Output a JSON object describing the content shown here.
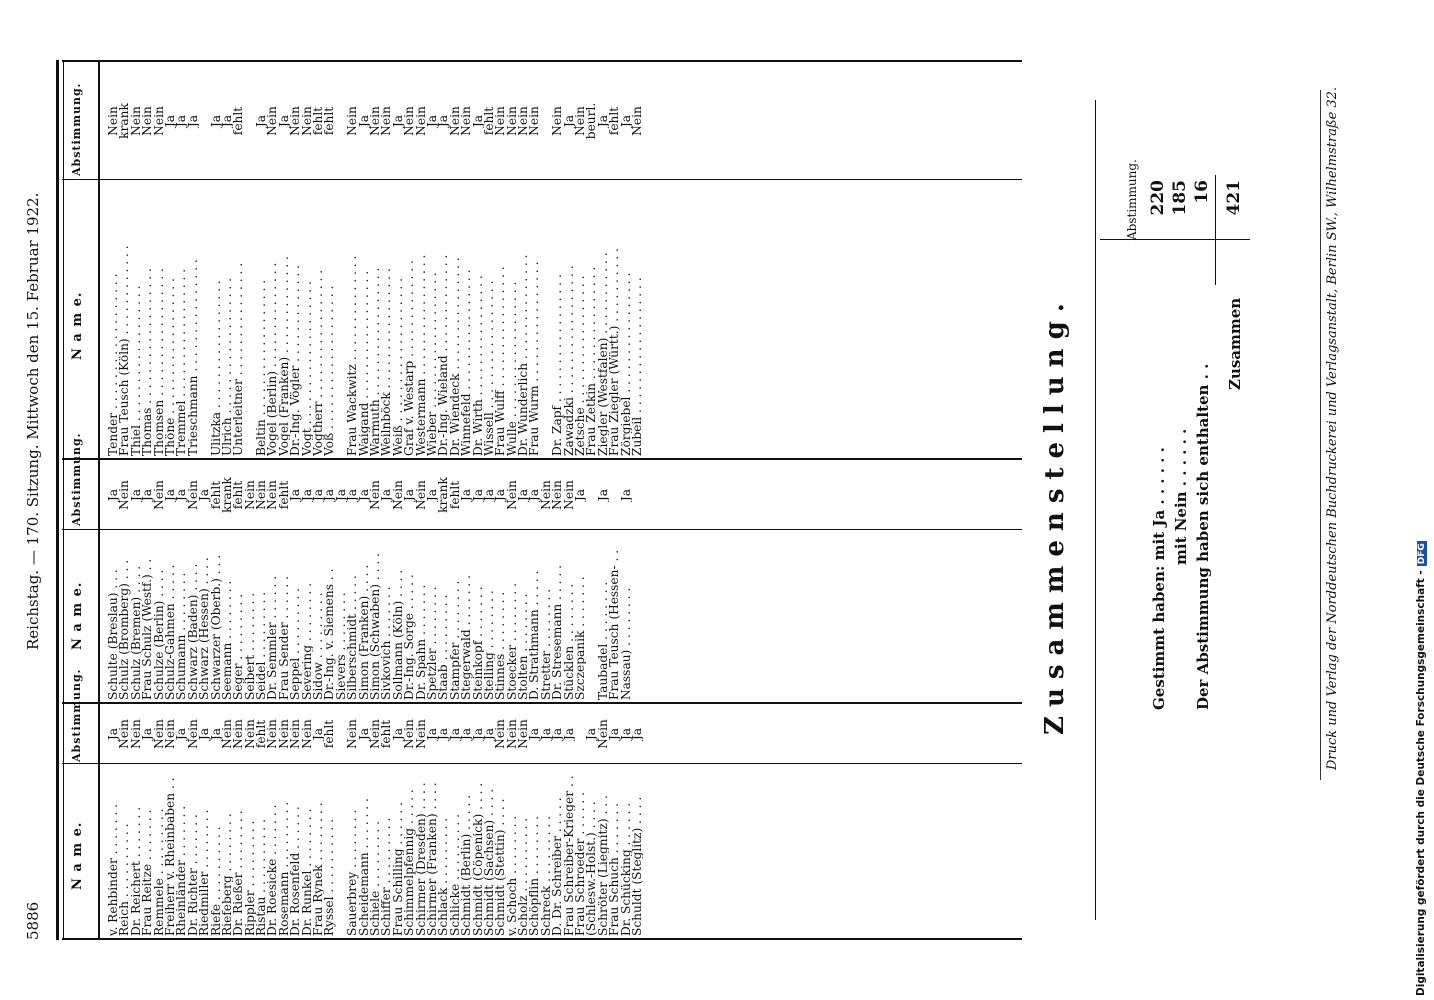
{
  "header": {
    "page_number": "5886",
    "title": "Reichstag. — 170. Sitzung. Mittwoch den 15. Februar 1922."
  },
  "columns": {
    "name_header": "N a m e.",
    "vote_header": "Abstimmung."
  },
  "col1": [
    [
      "v. Rehbinder",
      "Ja"
    ],
    [
      "Reich",
      "Nein"
    ],
    [
      "Dr. Reichert",
      "Nein"
    ],
    [
      "Frau Reitze",
      "Ja"
    ],
    [
      "Remmele",
      "Nein"
    ],
    [
      "Freiherr v. Rheinbaben",
      "Nein"
    ],
    [
      "Rheinländer",
      "Ja"
    ],
    [
      "Dr. Richter",
      "Nein"
    ],
    [
      "Riedmiller",
      "Ja"
    ],
    [
      "Riefe",
      "Ja"
    ],
    [
      "Riefeberg",
      "Nein"
    ],
    [
      "Dr. Rießer",
      "Nein"
    ],
    [
      "Rippler",
      "Nein"
    ],
    [
      "Ristau",
      "fehlt"
    ],
    [
      "Dr. Roesicke",
      "Nein"
    ],
    [
      "Rosemann",
      "Nein"
    ],
    [
      "Dr. Rosenfeld",
      "Nein"
    ],
    [
      "Dr. Runkel",
      "Nein"
    ],
    [
      "Frau Rynek",
      "Ja"
    ],
    [
      "Ryssel",
      "fehlt"
    ],
    [
      "",
      ""
    ],
    [
      "Sauerbrey",
      "Nein"
    ],
    [
      "Scheidemann",
      "Ja"
    ],
    [
      "Schiele",
      "Nein"
    ],
    [
      "Schiffer",
      "fehlt"
    ],
    [
      "Frau Schilling",
      "Ja"
    ],
    [
      "Schimmelpfennig",
      "Nein"
    ],
    [
      "Schirmer (Dresden)",
      "Nein"
    ],
    [
      "Schirmer (Franken)",
      "Ja"
    ],
    [
      "Schlack",
      "Ja"
    ],
    [
      "Schlicke",
      "Ja"
    ],
    [
      "Schmidt (Berlin)",
      "Ja"
    ],
    [
      "Schmidt (Cöpenick)",
      "Ja"
    ],
    [
      "Schmidt (Sachsen)",
      "Ja"
    ],
    [
      "Schmidt (Stettin)",
      "Nein"
    ],
    [
      "v. Schoch",
      "Nein"
    ],
    [
      "Scholz",
      "Nein"
    ],
    [
      "Schöpflin",
      "Ja"
    ],
    [
      "Schreck",
      "Ja"
    ],
    [
      "D. Dr. Schreiber",
      "Ja"
    ],
    [
      "Frau Schreiber-Krieger",
      "Ja"
    ],
    [
      "Frau Schroeder",
      ""
    ],
    [
      "(Schlesw.-Holst.)",
      "Ja"
    ],
    [
      "Schröter (Liegnitz)",
      "Nein"
    ],
    [
      "Frau Schuch",
      "Ja"
    ],
    [
      "Dr. Schücking",
      "Ja"
    ],
    [
      "Schuldt (Steglitz)",
      "Ja"
    ]
  ],
  "col2": [
    [
      "Schulte (Breslau)",
      "Ja"
    ],
    [
      "Schulz (Bromberg)",
      "Nein"
    ],
    [
      "Schulz (Bremen)",
      "Ja"
    ],
    [
      "Frau Schulz (Westf.)",
      "Ja"
    ],
    [
      "Schulze (Berlin)",
      "Nein"
    ],
    [
      "Schulz-Gahmen",
      "Ja"
    ],
    [
      "Schumann",
      "Ja"
    ],
    [
      "Schwarz (Baden)",
      "Nein"
    ],
    [
      "Schwarz (Hessen)",
      "Ja"
    ],
    [
      "Schwarzer (Oberb.)",
      "fehlt"
    ],
    [
      "Seemann",
      "krank"
    ],
    [
      "Seger",
      "fehlt"
    ],
    [
      "Seibert",
      "Nein"
    ],
    [
      "Seidel",
      "Nein"
    ],
    [
      "Dr. Semmler",
      "Nein"
    ],
    [
      "Frau Sender",
      "fehlt"
    ],
    [
      "Seppel",
      "Ja"
    ],
    [
      "Severing",
      "Ja"
    ],
    [
      "Sidow",
      "Ja"
    ],
    [
      "Dr.-Ing. v. Siemens",
      "Ja"
    ],
    [
      "Sievers",
      "Ja"
    ],
    [
      "Silberschmidt",
      "Ja"
    ],
    [
      "Simon (Franken)",
      "Ja"
    ],
    [
      "Simon (Schwaben)",
      "Nein"
    ],
    [
      "Sivkovich",
      "Ja"
    ],
    [
      "Sollmann (Köln)",
      "Nein"
    ],
    [
      "Dr.-Ing. Sorge",
      "Ja"
    ],
    [
      "Dr. Spahn",
      "Nein"
    ],
    [
      "Spetzler",
      "Ja"
    ],
    [
      "Staab",
      "krank"
    ],
    [
      "Stampfer",
      "fehlt"
    ],
    [
      "Stegerwald",
      "Ja"
    ],
    [
      "Steinkopf",
      "Ja"
    ],
    [
      "Stelling",
      "Ja"
    ],
    [
      "Stinnes",
      "Ja"
    ],
    [
      "Stoecker",
      "Nein"
    ],
    [
      "Stolten",
      "Ja"
    ],
    [
      "D. Strathmann",
      "Ja"
    ],
    [
      "Stretter",
      "Nein"
    ],
    [
      "Dr. Stresemann",
      "Nein"
    ],
    [
      "Stücklen",
      "Nein"
    ],
    [
      "Szczepanik",
      "Ja"
    ],
    [
      "",
      ""
    ],
    [
      "Taubadel",
      "Ja"
    ],
    [
      "Frau Teusch (Hessen-",
      ""
    ],
    [
      "Nassau)",
      "Ja"
    ]
  ],
  "col3": [
    [
      "Tender",
      "Nein"
    ],
    [
      "Frau Teusch (Köln)",
      "krank"
    ],
    [
      "Thiel",
      "Nein"
    ],
    [
      "Thomas",
      "Nein"
    ],
    [
      "Thomsen",
      "Nein"
    ],
    [
      "Thöne",
      "Ja"
    ],
    [
      "Tremmel",
      "Ja"
    ],
    [
      "Trieschmann",
      "Ja"
    ],
    [
      "",
      ""
    ],
    [
      "Ulitzka",
      "Ja"
    ],
    [
      "Ulrich",
      "Ja"
    ],
    [
      "Unterleitner",
      "fehlt"
    ],
    [
      "",
      ""
    ],
    [
      "Beltin",
      "Ja"
    ],
    [
      "Vogel (Berlin)",
      "Nein"
    ],
    [
      "Vogel (Franken)",
      "Ja"
    ],
    [
      "Dr.-Ing. Vögler",
      "Nein"
    ],
    [
      "Vogt",
      "Nein"
    ],
    [
      "Vogtherr",
      "fehlt"
    ],
    [
      "Voß",
      "fehlt"
    ],
    [
      "",
      ""
    ],
    [
      "Frau Wackwitz",
      "Nein"
    ],
    [
      "Waigand",
      "Ja"
    ],
    [
      "Warmuth",
      "Nein"
    ],
    [
      "Weilnböck",
      "Nein"
    ],
    [
      "Weiß",
      "Ja"
    ],
    [
      "Graf v. Westarp",
      "Nein"
    ],
    [
      "Westermann",
      "Nein"
    ],
    [
      "Wieber",
      "Ja"
    ],
    [
      "Dr.-Ing. Wieland",
      "Ja"
    ],
    [
      "Dr. Wiendeck",
      "Nein"
    ],
    [
      "Winnefeld",
      "Nein"
    ],
    [
      "Dr. Wirth",
      "Ja"
    ],
    [
      "Wissell",
      "fehlt"
    ],
    [
      "Frau Wulff",
      "Nein"
    ],
    [
      "Wulle",
      "Nein"
    ],
    [
      "Dr. Wunderlich",
      "Nein"
    ],
    [
      "Frau Wurm",
      "Nein"
    ],
    [
      "",
      ""
    ],
    [
      "Dr. Zapf",
      "Nein"
    ],
    [
      "Zawadzki",
      "Ja"
    ],
    [
      "Zetsche",
      "Nein"
    ],
    [
      "Frau Zetkin",
      "beurl."
    ],
    [
      "Ziegler (Westfalen)",
      "Ja"
    ],
    [
      "Frau Ziegler (Württ.)",
      "fehlt"
    ],
    [
      "Zörgiebel",
      "Ja"
    ],
    [
      "Zubeil",
      "Nein"
    ]
  ],
  "summary": {
    "title": "Zusammenstellung.",
    "col_header": "Abstimmung.",
    "line1": "Gestimmt haben: mit Ja . . . . . .",
    "line2": "mit Nein . . . . . .",
    "line3": "Der Abstimmung haben sich enthalten . .",
    "total_label": "Zusammen",
    "ja": "220",
    "nein": "185",
    "enthalten": "16",
    "total": "421"
  },
  "footer": "Druck und Verlag der Norddeutschen Buchdruckerei und Verlagsanstalt, Berlin SW., Wilhelmstraße 32.",
  "dfg": {
    "text": "Digitalisierung gefördert durch die Deutsche Forschungsgemeinschaft -",
    "logo": "DFG"
  }
}
